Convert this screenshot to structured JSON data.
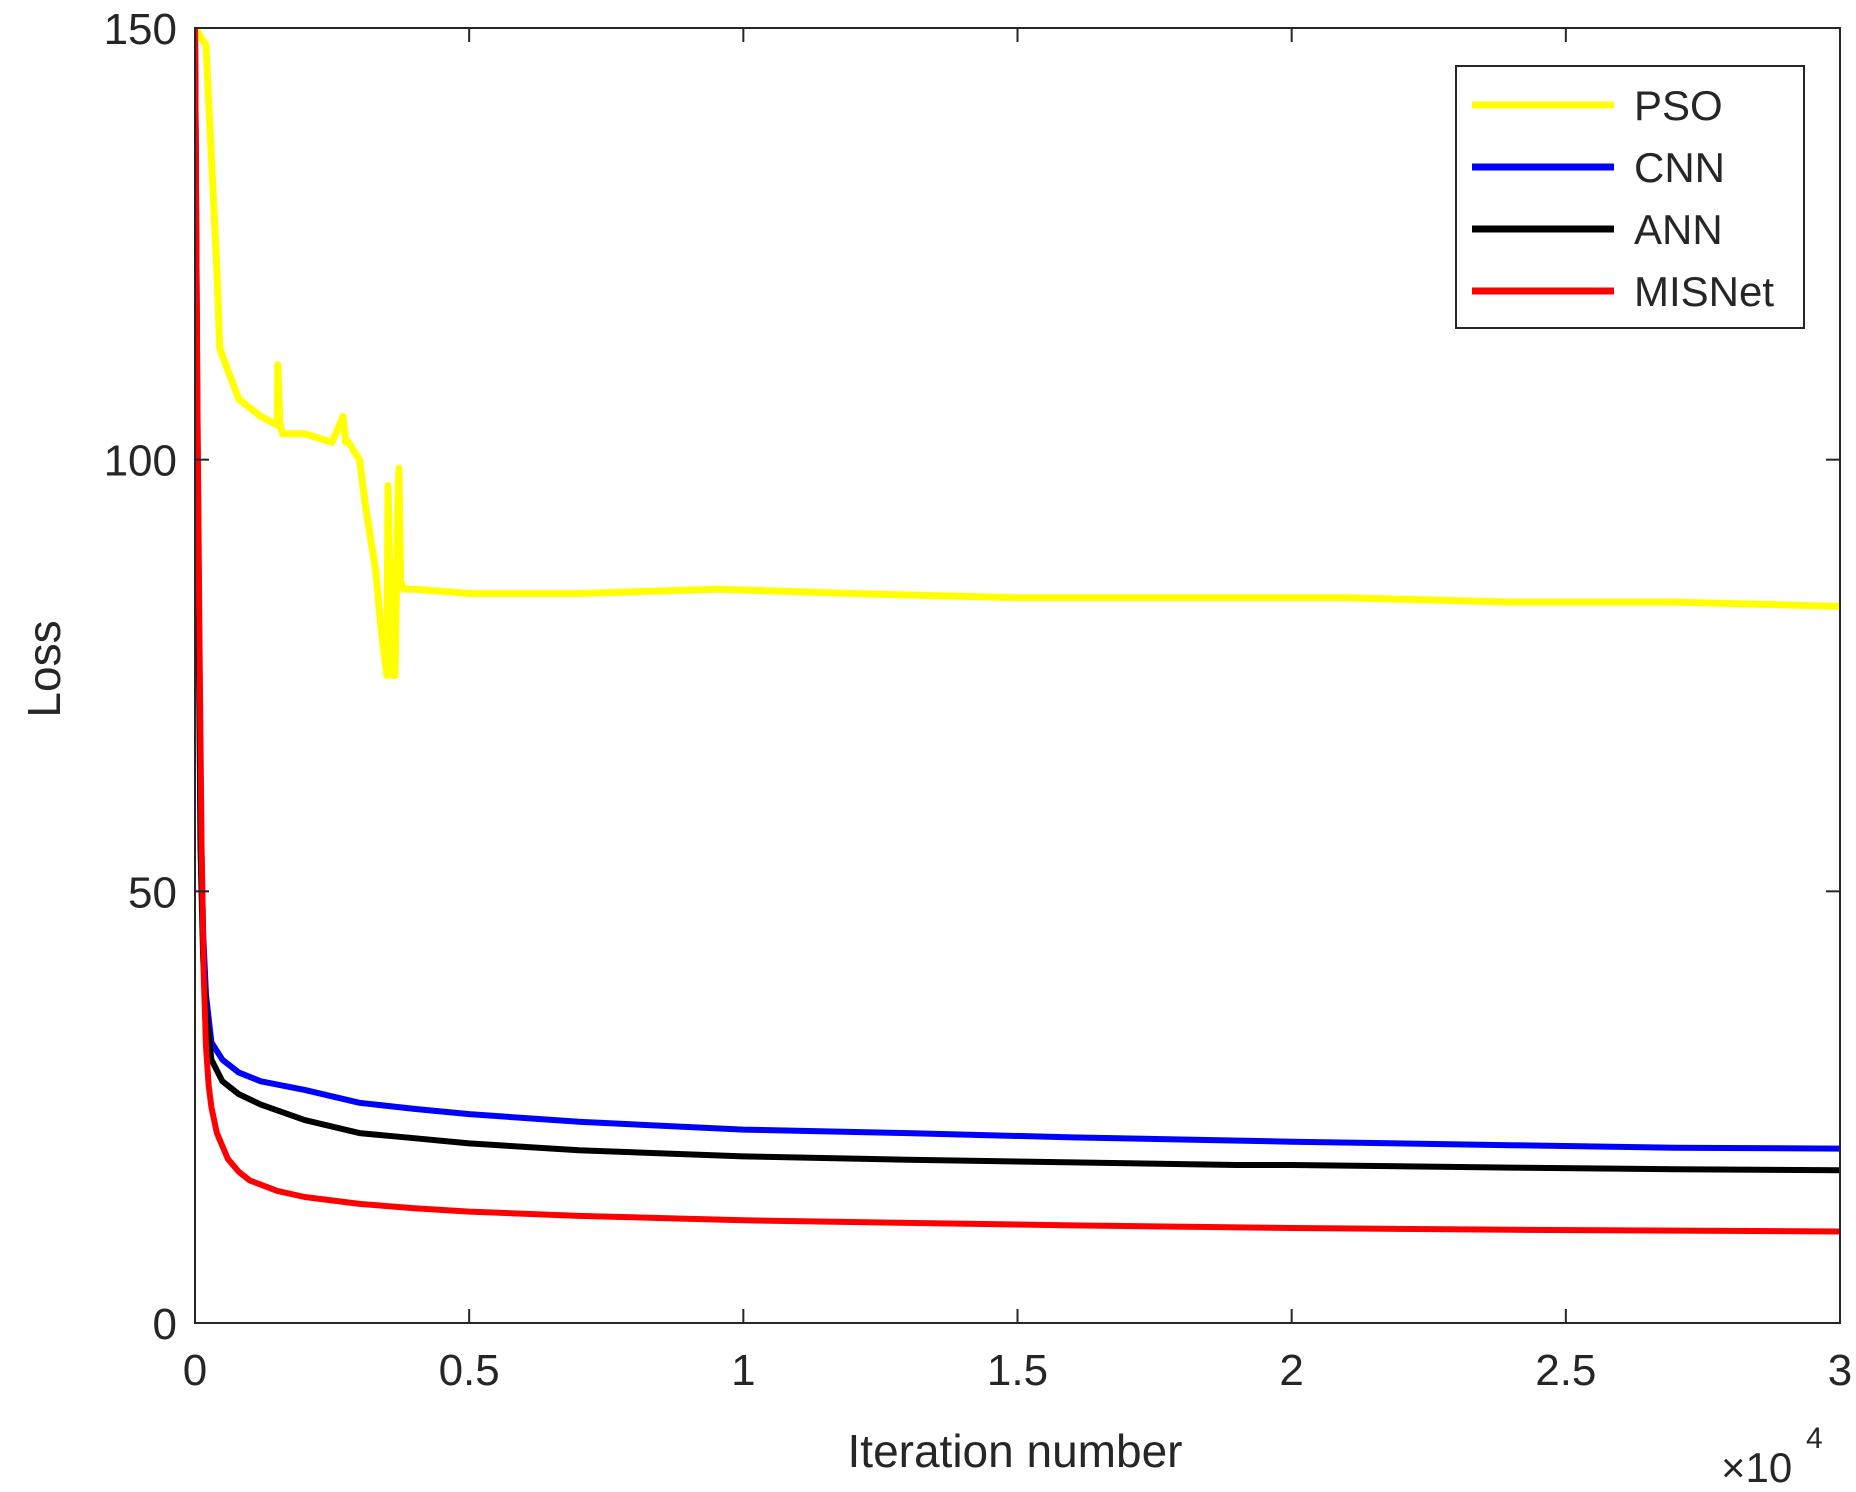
{
  "chart_data": {
    "type": "line",
    "title": "",
    "xlabel": "Iteration number",
    "ylabel": "Loss",
    "x_exponent_label": "×10",
    "x_exponent_power": "4",
    "xlim": [
      0,
      30000
    ],
    "ylim": [
      0,
      150
    ],
    "grid": false,
    "legend_position": "top-right",
    "xticks": [
      0,
      5000,
      10000,
      15000,
      20000,
      25000,
      30000
    ],
    "xtick_labels": [
      "0",
      "0.5",
      "1",
      "1.5",
      "2",
      "2.5",
      "3"
    ],
    "yticks": [
      0,
      50,
      100,
      150
    ],
    "ytick_labels": [
      "0",
      "50",
      "100",
      "150"
    ],
    "series": [
      {
        "name": "PSO",
        "color": "#ffff00",
        "x": [
          0,
          200,
          300,
          400,
          450,
          500,
          800,
          1200,
          1500,
          1510,
          1550,
          1600,
          2000,
          2500,
          2700,
          2750,
          2800,
          3000,
          3100,
          3300,
          3400,
          3500,
          3520,
          3600,
          3650,
          3700,
          3720,
          3750,
          3800,
          3850,
          4000,
          5000,
          7000,
          9500,
          12000,
          15000,
          18000,
          21000,
          24000,
          27000,
          30000
        ],
        "y": [
          150,
          148,
          135,
          122,
          113,
          112,
          107,
          105,
          104,
          111,
          104,
          103,
          103,
          102,
          105,
          102,
          102,
          100,
          95,
          87,
          80,
          75,
          97,
          75,
          75,
          95,
          99,
          86,
          85,
          85,
          85,
          84.5,
          84.5,
          85,
          84.5,
          84,
          84,
          84,
          83.5,
          83.5,
          83
        ]
      },
      {
        "name": "CNN",
        "color": "#0000ff",
        "x": [
          0,
          50,
          100,
          150,
          200,
          300,
          500,
          800,
          1200,
          2000,
          3000,
          4000,
          5000,
          7000,
          10000,
          13000,
          16000,
          20000,
          24000,
          27000,
          30000
        ],
        "y": [
          150,
          100,
          60,
          45,
          38,
          32.5,
          30.5,
          29,
          28,
          27,
          25.5,
          24.8,
          24.2,
          23.3,
          22.4,
          22,
          21.5,
          21,
          20.6,
          20.3,
          20.2
        ]
      },
      {
        "name": "ANN",
        "color": "#000000",
        "x": [
          0,
          50,
          100,
          150,
          200,
          300,
          500,
          800,
          1200,
          2000,
          3000,
          4000,
          5000,
          7000,
          10000,
          13000,
          16000,
          19000,
          20000,
          24000,
          27000,
          30000
        ],
        "y": [
          150,
          95,
          55,
          42,
          36,
          30.5,
          28,
          26.5,
          25.3,
          23.5,
          22,
          21.4,
          20.8,
          20,
          19.3,
          18.9,
          18.6,
          18.3,
          18.3,
          18,
          17.8,
          17.7
        ]
      },
      {
        "name": "MISNet",
        "color": "#ff0000",
        "x": [
          0,
          40,
          80,
          120,
          160,
          200,
          250,
          300,
          400,
          600,
          800,
          1000,
          1500,
          2000,
          3000,
          4000,
          5000,
          7000,
          10000,
          13000,
          16000,
          20000,
          24000,
          27000,
          30000
        ],
        "y": [
          150,
          110,
          80,
          55,
          40,
          32,
          27.5,
          25,
          22,
          19,
          17.5,
          16.5,
          15.3,
          14.6,
          13.8,
          13.3,
          12.9,
          12.4,
          11.9,
          11.6,
          11.3,
          11,
          10.8,
          10.7,
          10.6
        ]
      }
    ]
  }
}
